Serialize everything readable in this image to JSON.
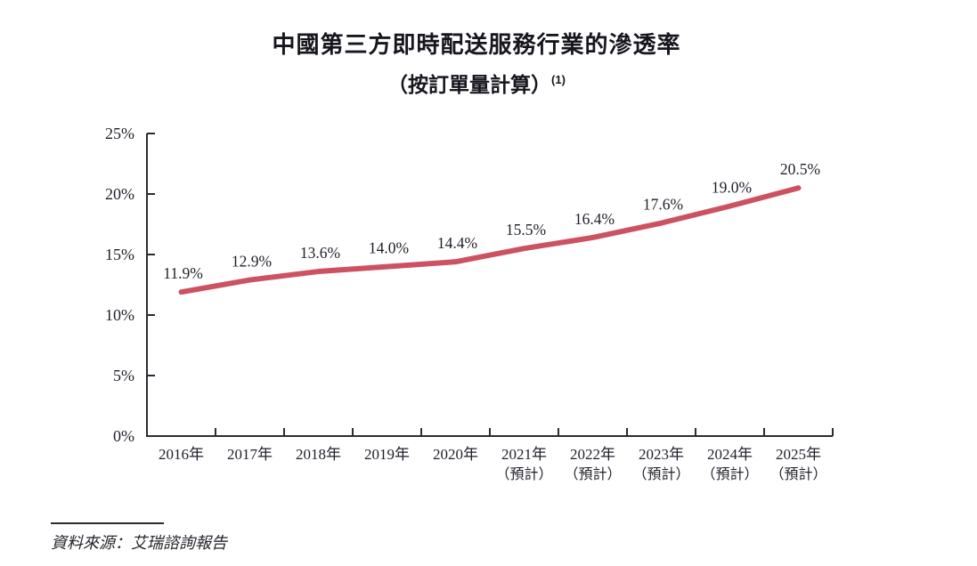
{
  "title": "中國第三方即時配送服務行業的滲透率",
  "subtitle": "（按訂單量計算）",
  "subtitle_footnote": "(1)",
  "source": "資料來源：艾瑞諮詢報告",
  "colors": {
    "line": "#cd5261",
    "text": "#1f1f2a",
    "axis": "#2b2b33"
  },
  "chart_data": {
    "type": "line",
    "title": "中國第三方即時配送服務行業的滲透率（按訂單量計算）(1)",
    "categories": [
      "2016年",
      "2017年",
      "2018年",
      "2019年",
      "2020年",
      "2021年",
      "2022年",
      "2023年",
      "2024年",
      "2025年"
    ],
    "category_notes": [
      "",
      "",
      "",
      "",
      "",
      "（預計）",
      "（預計）",
      "（預計）",
      "（預計）",
      "（預計）"
    ],
    "values": [
      11.9,
      12.9,
      13.6,
      14.0,
      14.4,
      15.5,
      16.4,
      17.6,
      19.0,
      20.5
    ],
    "point_labels": [
      "11.9%",
      "12.9%",
      "13.6%",
      "14.0%",
      "14.4%",
      "15.5%",
      "16.4%",
      "17.6%",
      "19.0%",
      "20.5%"
    ],
    "xlabel": "",
    "ylabel": "",
    "ylim": [
      0,
      25
    ],
    "yticks": [
      0,
      5,
      10,
      15,
      20,
      25
    ],
    "ytick_labels": [
      "0%",
      "5%",
      "10%",
      "15%",
      "20%",
      "25%"
    ],
    "grid": false,
    "legend": null,
    "line_color": "#cd5261"
  }
}
